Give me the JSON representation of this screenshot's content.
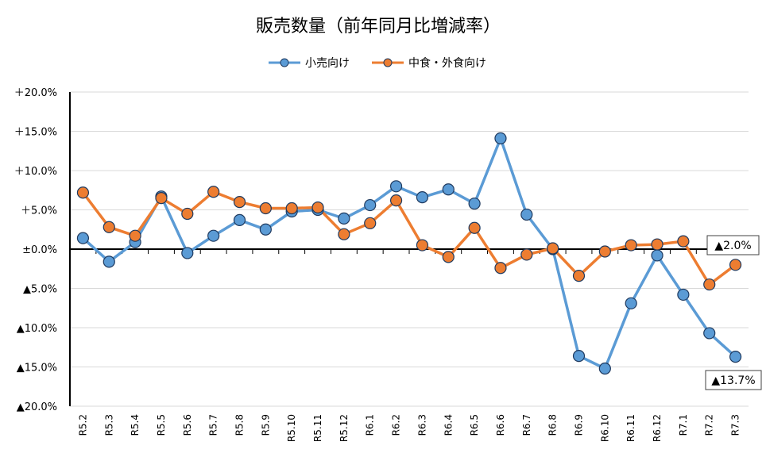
{
  "chart_data": {
    "type": "line",
    "title": "販売数量（前年同月比増減率）",
    "categories": [
      "R5.2",
      "R5.3",
      "R5.4",
      "R5.5",
      "R5.6",
      "R5.7",
      "R5.8",
      "R5.9",
      "R5.10",
      "R5.11",
      "R5.12",
      "R6.1",
      "R6.2",
      "R6.3",
      "R6.4",
      "R6.5",
      "R6.6",
      "R6.7",
      "R6.8",
      "R6.9",
      "R6.10",
      "R6.11",
      "R6.12",
      "R7.1",
      "R7.2",
      "R7.3"
    ],
    "yticks": [
      {
        "value": 20,
        "label": "＋20.0%"
      },
      {
        "value": 15,
        "label": "＋15.0%"
      },
      {
        "value": 10,
        "label": "＋10.0%"
      },
      {
        "value": 5,
        "label": "＋5.0%"
      },
      {
        "value": 0,
        "label": "±0.0%"
      },
      {
        "value": -5,
        "label": "▲5.0%"
      },
      {
        "value": -10,
        "label": "▲10.0%"
      },
      {
        "value": -15,
        "label": "▲15.0%"
      },
      {
        "value": -20,
        "label": "▲20.0%"
      }
    ],
    "ylim": [
      -20,
      20
    ],
    "grid": true,
    "legend_position": "top",
    "series": [
      {
        "name": "小売向け",
        "color": "#5B9BD5",
        "values": [
          1.4,
          -1.6,
          0.9,
          6.7,
          -0.5,
          1.7,
          3.7,
          2.5,
          4.8,
          5.0,
          3.9,
          5.6,
          8.0,
          6.6,
          7.6,
          5.8,
          14.1,
          4.4,
          0.0,
          -13.6,
          -15.2,
          -6.9,
          -0.8,
          -5.8,
          -10.7,
          -13.7
        ]
      },
      {
        "name": "中食・外食向け",
        "color": "#ED7D31",
        "values": [
          7.2,
          2.8,
          1.7,
          6.5,
          4.5,
          7.3,
          6.0,
          5.2,
          5.2,
          5.3,
          1.9,
          3.3,
          6.2,
          0.5,
          -1.0,
          2.7,
          -2.4,
          -0.7,
          0.1,
          -3.4,
          -0.3,
          0.5,
          0.6,
          1.0,
          -4.5,
          -2.0
        ]
      }
    ],
    "annotations": [
      {
        "series": "中食・外食向け",
        "category": "R7.3",
        "text": "▲2.0%"
      },
      {
        "series": "小売向け",
        "category": "R7.3",
        "text": "▲13.7%"
      }
    ]
  }
}
